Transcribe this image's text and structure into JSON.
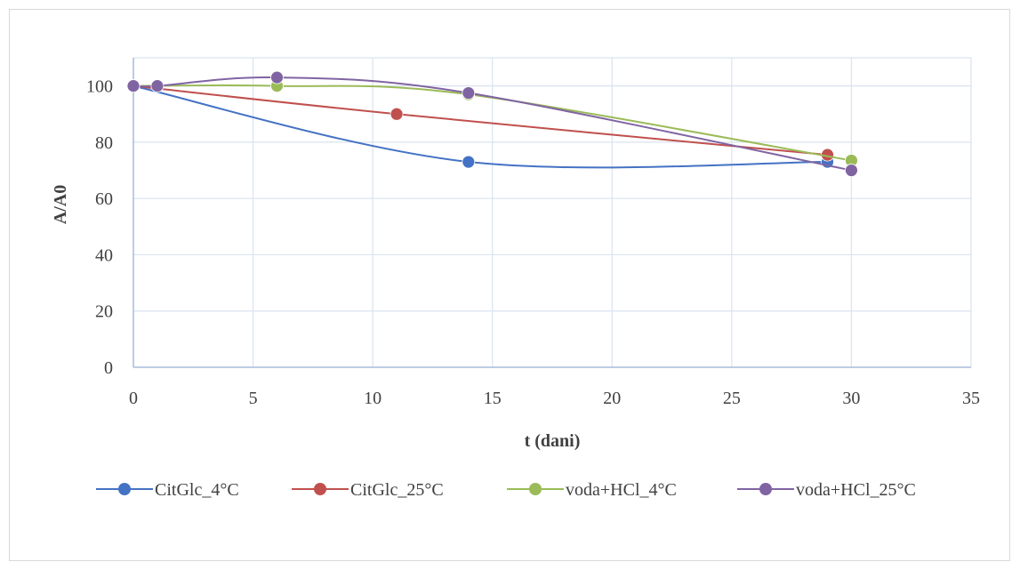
{
  "chart_data": {
    "type": "scatter",
    "title": "",
    "xlabel": "t (dani)",
    "ylabel": "A/A0",
    "xlim": [
      0,
      35
    ],
    "ylim": [
      0,
      110
    ],
    "xticks": [
      0,
      5,
      10,
      15,
      20,
      25,
      30,
      35
    ],
    "yticks": [
      0,
      20,
      40,
      60,
      80,
      100
    ],
    "grid": true,
    "smoothed_lines": true,
    "legend_position": "bottom",
    "series": [
      {
        "name": "CitGlc_4°C",
        "color": "#4472c4",
        "x": [
          0,
          14,
          29
        ],
        "y": [
          100,
          73,
          73
        ]
      },
      {
        "name": "CitGlc_25°C",
        "color": "#c0504d",
        "x": [
          0,
          11,
          29
        ],
        "y": [
          100,
          90,
          75.5
        ]
      },
      {
        "name": "voda+HCl_4°C",
        "color": "#9bbb59",
        "x": [
          0,
          6,
          14,
          30
        ],
        "y": [
          100,
          100,
          97,
          73.5
        ]
      },
      {
        "name": "voda+HCl_25°C",
        "color": "#8064a2",
        "x": [
          0,
          1,
          6,
          14,
          30
        ],
        "y": [
          100,
          100,
          103,
          97.5,
          70
        ]
      }
    ]
  }
}
